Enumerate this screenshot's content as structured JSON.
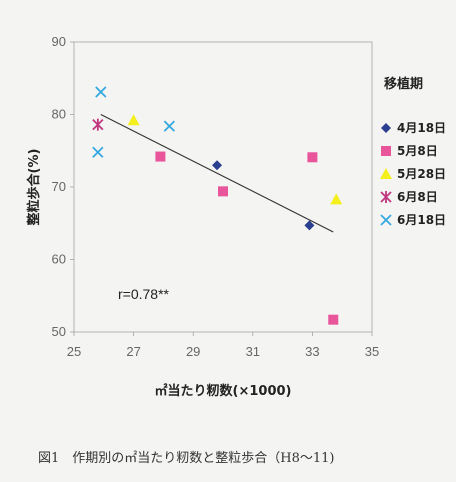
{
  "chart_data": {
    "type": "scatter",
    "xlabel": "㎡当たり籾数(×1000)",
    "ylabel": "整粒歩合(%)",
    "xlim": [
      25,
      35
    ],
    "ylim": [
      50,
      90
    ],
    "x_ticks": [
      "25",
      "27",
      "29",
      "31",
      "33",
      "35"
    ],
    "y_ticks": [
      "90",
      "80",
      "70",
      "60",
      "50"
    ],
    "legend_title": "移植期",
    "legend_position": "right",
    "series": [
      {
        "name": "4月18日",
        "marker": "diamond",
        "color": "#2a3f8f",
        "points": [
          {
            "x": 29.8,
            "y": 73.0
          },
          {
            "x": 32.9,
            "y": 64.7
          }
        ]
      },
      {
        "name": "5月8日",
        "marker": "square",
        "color": "#e8559a",
        "points": [
          {
            "x": 27.9,
            "y": 74.2
          },
          {
            "x": 30.0,
            "y": 69.4
          },
          {
            "x": 33.0,
            "y": 74.1
          },
          {
            "x": 33.7,
            "y": 51.7
          }
        ]
      },
      {
        "name": "5月28日",
        "marker": "triangle",
        "color": "#f5ef1e",
        "points": [
          {
            "x": 27.0,
            "y": 79.2
          },
          {
            "x": 33.8,
            "y": 68.3
          }
        ]
      },
      {
        "name": "6月8日",
        "marker": "asterisk",
        "color": "#c0357f",
        "points": [
          {
            "x": 25.8,
            "y": 78.6
          }
        ]
      },
      {
        "name": "6月18日",
        "marker": "x",
        "color": "#34a8e0",
        "points": [
          {
            "x": 25.9,
            "y": 83.1
          },
          {
            "x": 28.2,
            "y": 78.4
          },
          {
            "x": 25.8,
            "y": 74.8
          }
        ]
      }
    ],
    "trendline": {
      "x": [
        25.9,
        33.7
      ],
      "y": [
        80.0,
        63.8
      ]
    },
    "annotation": "r=0.78**",
    "caption": "図1　作期別の㎡当たり籾数と整粒歩合（H8～11)"
  }
}
